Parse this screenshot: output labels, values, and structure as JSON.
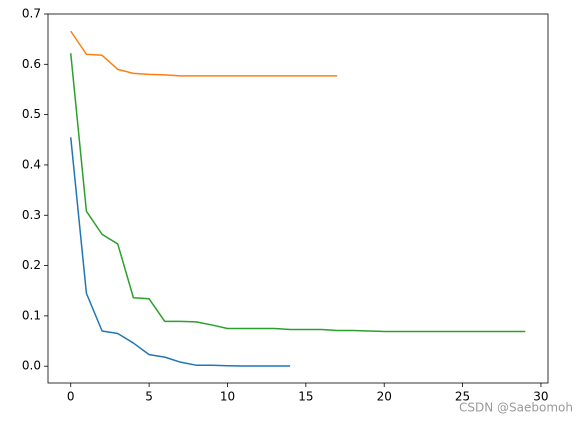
{
  "chart_data": {
    "type": "line",
    "xlim": [
      -1.45,
      30.45
    ],
    "ylim": [
      -0.0334,
      0.7
    ],
    "xticks": [
      0,
      5,
      10,
      15,
      20,
      25,
      30
    ],
    "yticks": [
      {
        "value": 0,
        "label": "0.0"
      },
      0.1,
      0.2,
      0.3,
      0.4,
      0.5,
      0.6,
      0.7
    ],
    "watermark": "CSDN @Saebomoh",
    "series": [
      {
        "color": "#1f77b4",
        "x": [
          0,
          1,
          2,
          3,
          4,
          5,
          6,
          7,
          8,
          9,
          10,
          11,
          12,
          13,
          14
        ],
        "values": [
          0.455,
          0.145,
          0.07,
          0.065,
          0.046,
          0.023,
          0.018,
          0.008,
          0.002,
          0.002,
          0.001,
          0.0005,
          0.0005,
          0.0005,
          0.0005
        ]
      },
      {
        "color": "#ff7f0e",
        "x": [
          0,
          1,
          2,
          3,
          4,
          5,
          6,
          7,
          8,
          9,
          10,
          11,
          12,
          13,
          14,
          15,
          16,
          17
        ],
        "values": [
          0.666,
          0.62,
          0.618,
          0.59,
          0.582,
          0.58,
          0.579,
          0.577,
          0.577,
          0.577,
          0.577,
          0.577,
          0.577,
          0.577,
          0.577,
          0.577,
          0.577,
          0.577
        ]
      },
      {
        "color": "#2ca02c",
        "x": [
          0,
          1,
          2,
          3,
          4,
          5,
          6,
          7,
          8,
          9,
          10,
          11,
          12,
          13,
          14,
          15,
          16,
          17,
          18,
          19,
          20,
          21,
          22,
          23,
          24,
          25,
          26,
          27,
          28,
          29
        ],
        "values": [
          0.622,
          0.308,
          0.262,
          0.243,
          0.136,
          0.134,
          0.089,
          0.089,
          0.088,
          0.082,
          0.075,
          0.075,
          0.075,
          0.075,
          0.073,
          0.073,
          0.073,
          0.071,
          0.071,
          0.07,
          0.069,
          0.069,
          0.069,
          0.069,
          0.069,
          0.069,
          0.069,
          0.069,
          0.069,
          0.069
        ]
      }
    ]
  }
}
